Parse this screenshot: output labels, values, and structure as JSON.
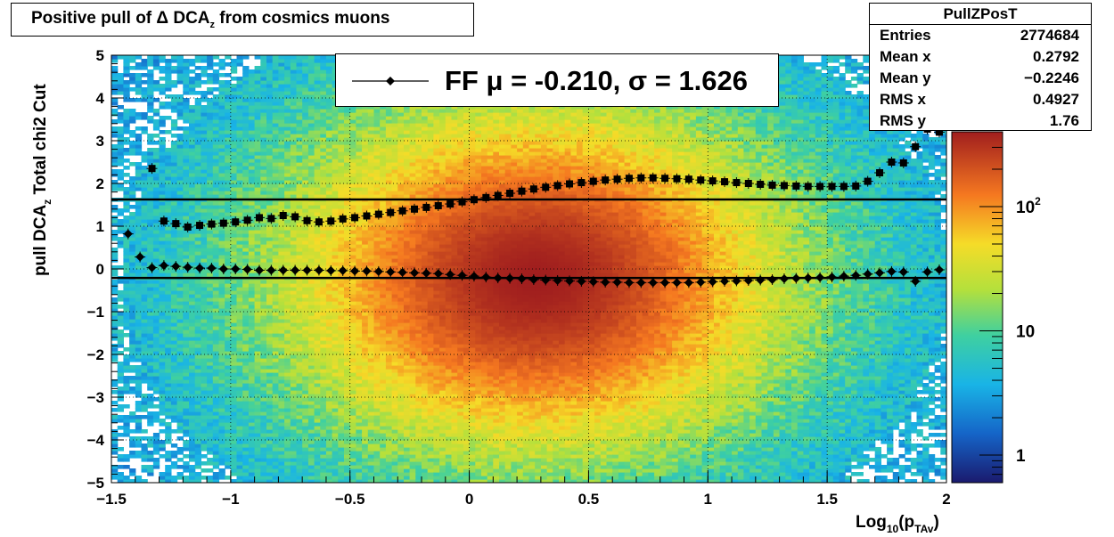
{
  "title": "Positive pull of Δ DCA_z from cosmics muons",
  "stats": {
    "name": "PullZPosT",
    "rows": [
      {
        "key": "Entries",
        "value": "2774684"
      },
      {
        "key": "Mean x",
        "value": "0.2792"
      },
      {
        "key": "Mean y",
        "value": "−0.2246"
      },
      {
        "key": "RMS x",
        "value": "0.4927"
      },
      {
        "key": "RMS y",
        "value": "1.76"
      }
    ]
  },
  "legend": {
    "text": "FF μ = -0.210, σ =   1.626"
  },
  "colors": {
    "marker": "#000000",
    "line": "#000000"
  },
  "chart_data": {
    "type": "heatmap",
    "xlabel": "Log10(pTAv)",
    "ylabel": "pull DCA_z    Total chi2 Cut",
    "xlim": [
      -1.5,
      2
    ],
    "ylim": [
      -5,
      5
    ],
    "x_ticks": [
      "−1.5",
      "−1",
      "−0.5",
      "0",
      "0.5",
      "1",
      "1.5",
      "2"
    ],
    "y_ticks": [
      "−5",
      "−4",
      "−3",
      "−2",
      "−1",
      "0",
      "1",
      "2",
      "3",
      "4",
      "5"
    ],
    "z_scale": "log",
    "z_ticks": [
      "1",
      "10",
      "10^2"
    ],
    "z_range": [
      0.6,
      400
    ],
    "grid": true,
    "fit_lines": [
      {
        "name": "mean",
        "y": -0.21
      },
      {
        "name": "sigma",
        "y": 1.626
      }
    ],
    "series": [
      {
        "name": "mean",
        "marker": "diamond",
        "x": [
          -1.43,
          -1.38,
          -1.33,
          -1.28,
          -1.23,
          -1.18,
          -1.13,
          -1.08,
          -1.03,
          -0.98,
          -0.93,
          -0.88,
          -0.83,
          -0.78,
          -0.73,
          -0.68,
          -0.63,
          -0.58,
          -0.53,
          -0.48,
          -0.43,
          -0.38,
          -0.33,
          -0.28,
          -0.23,
          -0.18,
          -0.13,
          -0.08,
          -0.03,
          0.02,
          0.07,
          0.12,
          0.17,
          0.22,
          0.27,
          0.32,
          0.37,
          0.42,
          0.47,
          0.52,
          0.57,
          0.62,
          0.67,
          0.72,
          0.77,
          0.82,
          0.87,
          0.92,
          0.97,
          1.02,
          1.07,
          1.12,
          1.17,
          1.22,
          1.27,
          1.32,
          1.37,
          1.42,
          1.47,
          1.52,
          1.57,
          1.62,
          1.67,
          1.72,
          1.77,
          1.82,
          1.87,
          1.92,
          1.97
        ],
        "y": [
          0.82,
          0.28,
          0.03,
          0.08,
          0.06,
          0.04,
          0.02,
          0.02,
          0.0,
          0.0,
          -0.01,
          -0.03,
          -0.03,
          -0.03,
          -0.03,
          -0.03,
          -0.03,
          -0.04,
          -0.04,
          -0.05,
          -0.05,
          -0.06,
          -0.07,
          -0.08,
          -0.09,
          -0.1,
          -0.11,
          -0.13,
          -0.15,
          -0.17,
          -0.19,
          -0.21,
          -0.22,
          -0.23,
          -0.25,
          -0.26,
          -0.27,
          -0.28,
          -0.29,
          -0.3,
          -0.31,
          -0.31,
          -0.32,
          -0.32,
          -0.32,
          -0.32,
          -0.32,
          -0.32,
          -0.31,
          -0.3,
          -0.29,
          -0.28,
          -0.27,
          -0.26,
          -0.25,
          -0.23,
          -0.22,
          -0.21,
          -0.2,
          -0.19,
          -0.17,
          -0.15,
          -0.12,
          -0.09,
          -0.06,
          -0.07,
          -0.29,
          -0.07,
          -0.02
        ]
      },
      {
        "name": "sigma",
        "marker": "square",
        "x": [
          -1.33,
          -1.28,
          -1.23,
          -1.18,
          -1.13,
          -1.08,
          -1.03,
          -0.98,
          -0.93,
          -0.88,
          -0.83,
          -0.78,
          -0.73,
          -0.68,
          -0.63,
          -0.58,
          -0.53,
          -0.48,
          -0.43,
          -0.38,
          -0.33,
          -0.28,
          -0.23,
          -0.18,
          -0.13,
          -0.08,
          -0.03,
          0.02,
          0.07,
          0.12,
          0.17,
          0.22,
          0.27,
          0.32,
          0.37,
          0.42,
          0.47,
          0.52,
          0.57,
          0.62,
          0.67,
          0.72,
          0.77,
          0.82,
          0.87,
          0.92,
          0.97,
          1.02,
          1.07,
          1.12,
          1.17,
          1.22,
          1.27,
          1.32,
          1.37,
          1.42,
          1.47,
          1.52,
          1.57,
          1.62,
          1.67,
          1.72,
          1.77,
          1.82,
          1.87,
          1.92,
          1.97
        ],
        "y": [
          2.35,
          1.12,
          1.06,
          0.98,
          1.02,
          1.05,
          1.07,
          1.1,
          1.14,
          1.2,
          1.18,
          1.25,
          1.22,
          1.13,
          1.1,
          1.12,
          1.17,
          1.2,
          1.24,
          1.28,
          1.32,
          1.36,
          1.4,
          1.44,
          1.48,
          1.52,
          1.57,
          1.62,
          1.67,
          1.72,
          1.77,
          1.82,
          1.87,
          1.91,
          1.95,
          1.99,
          2.02,
          2.05,
          2.08,
          2.1,
          2.12,
          2.13,
          2.13,
          2.12,
          2.11,
          2.1,
          2.08,
          2.06,
          2.04,
          2.02,
          2.0,
          1.98,
          1.96,
          1.95,
          1.94,
          1.93,
          1.93,
          1.93,
          1.93,
          1.94,
          2.05,
          2.25,
          2.5,
          2.48,
          2.86,
          3.27,
          3.2
        ]
      }
    ]
  }
}
